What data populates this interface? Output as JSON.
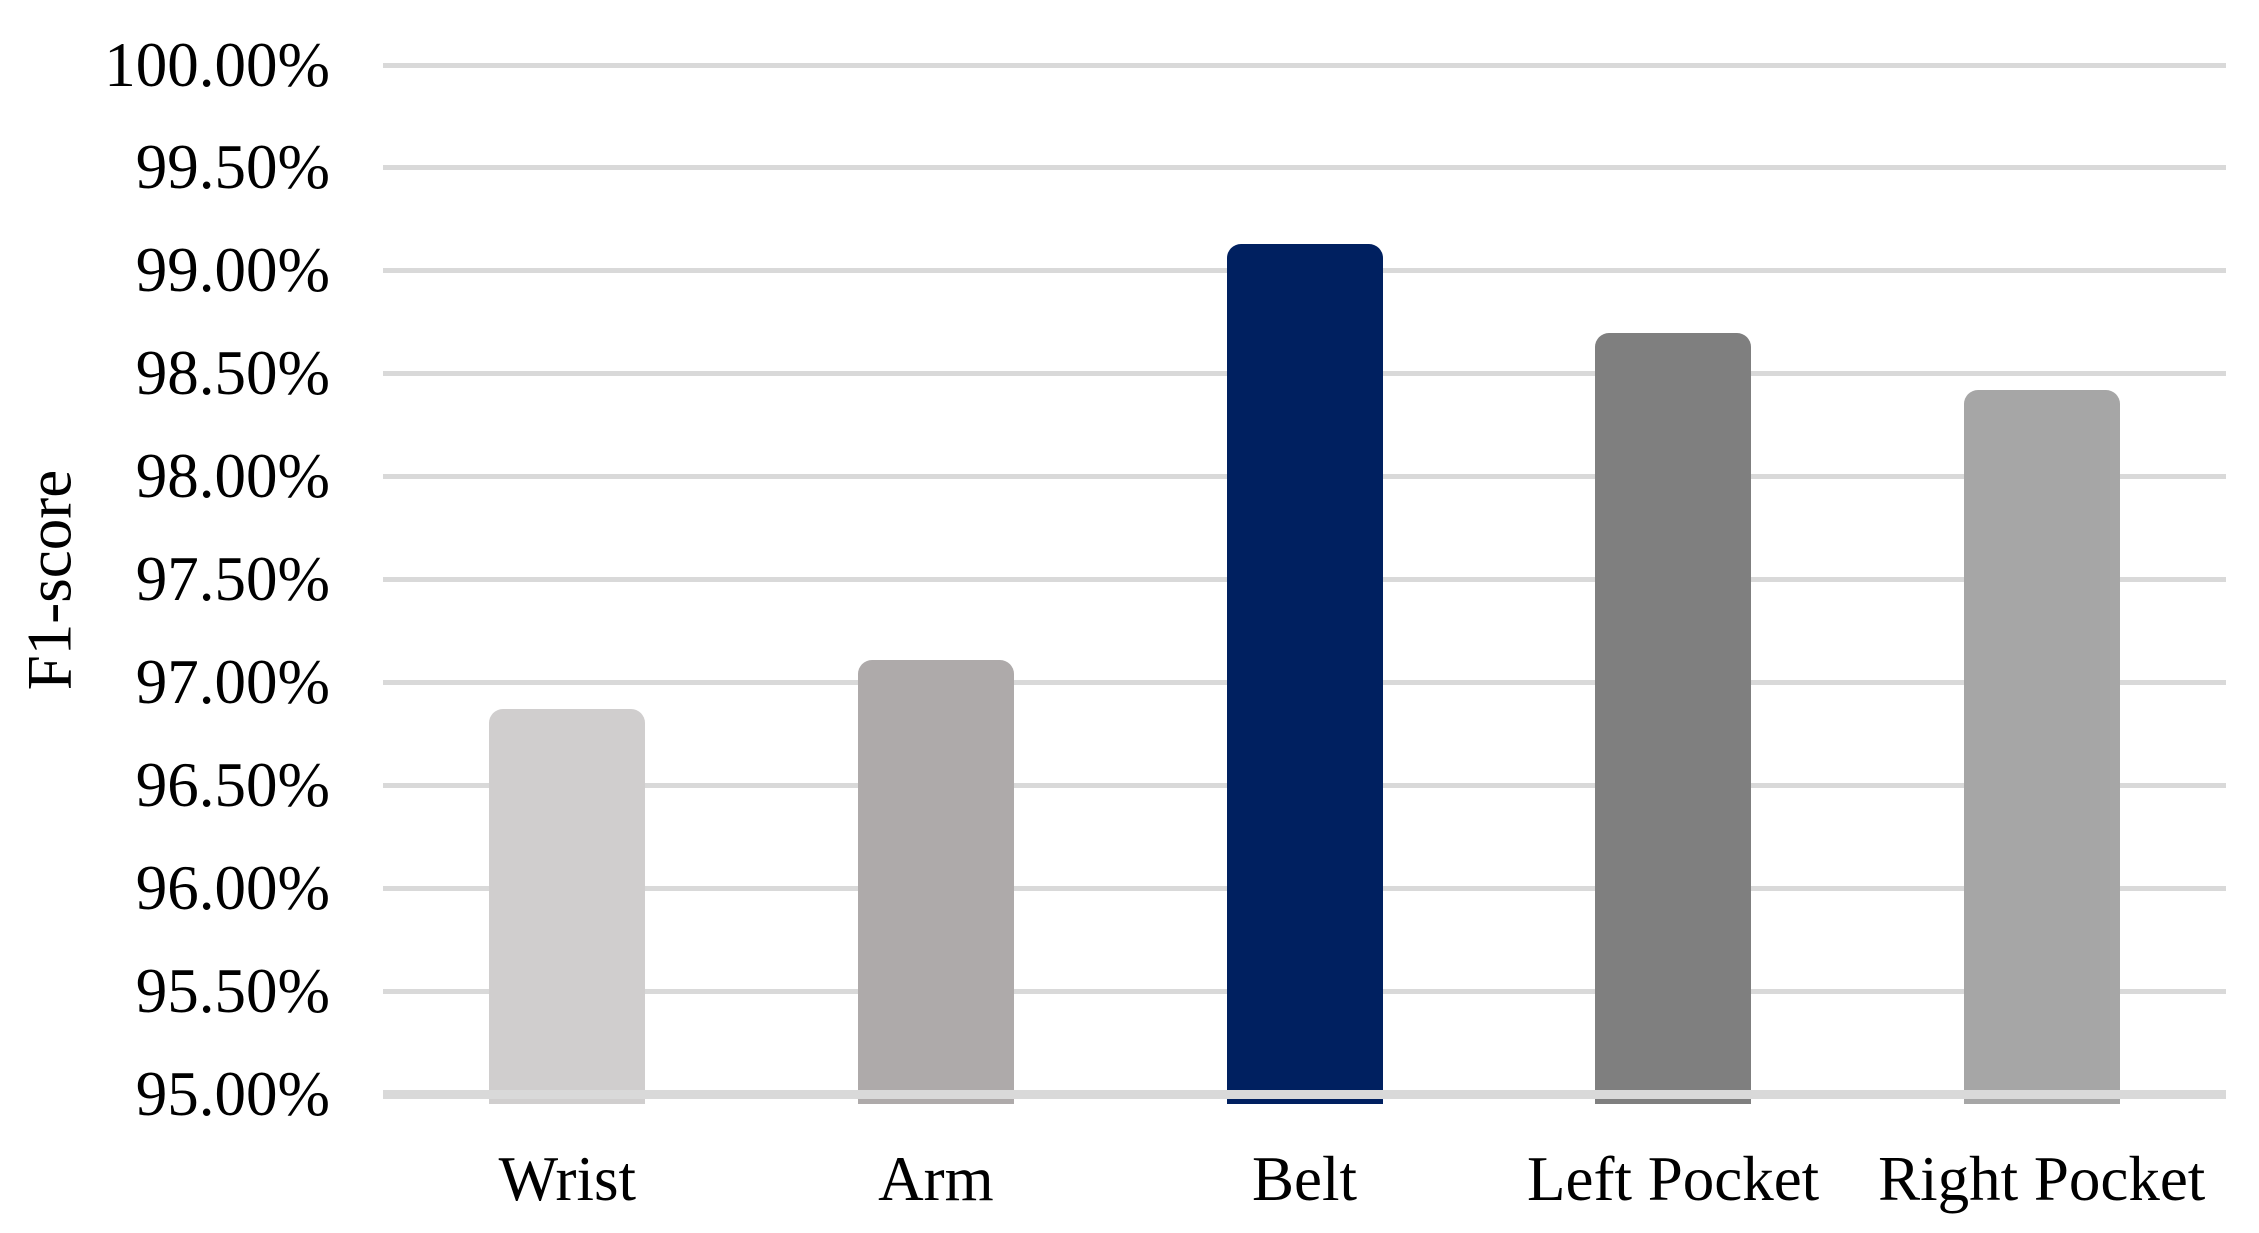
{
  "chart_data": {
    "type": "bar",
    "title": "",
    "xlabel": "",
    "ylabel": "F1-score",
    "categories": [
      "Wrist",
      "Arm",
      "Belt",
      "Left Pocket",
      "Right Pocket"
    ],
    "values": [
      96.87,
      97.11,
      99.13,
      98.7,
      98.42
    ],
    "value_unit": "%",
    "series_name": "F1-score",
    "bar_colors": [
      "#d0cece",
      "#aeaaaa",
      "#002060",
      "#7f7f7f",
      "#a6a6a6"
    ],
    "ylim": [
      95.0,
      100.0
    ],
    "y_tick_labels": [
      "100.00%",
      "99.50%",
      "99.00%",
      "98.50%",
      "98.00%",
      "97.50%",
      "97.00%",
      "96.50%",
      "96.00%",
      "95.50%",
      "95.00%"
    ],
    "y_tick_values": [
      100.0,
      99.5,
      99.0,
      98.5,
      98.0,
      97.5,
      97.0,
      96.5,
      96.0,
      95.5,
      95.0
    ],
    "grid": "horizontal",
    "gridline_color": "#d9d9d9",
    "axis_line_color": "#d9d9d9",
    "background_color": "#ffffff",
    "text_color": "#000000",
    "legend": "none",
    "data_labels": "none"
  }
}
